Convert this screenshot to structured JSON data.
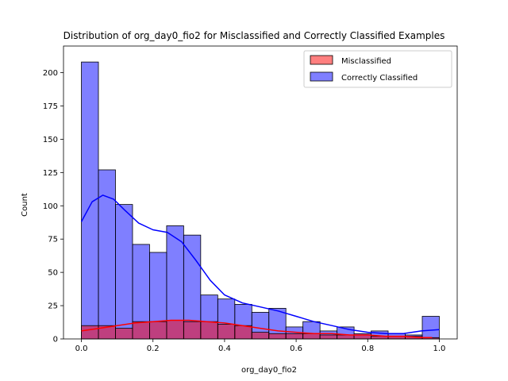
{
  "chart_data": {
    "type": "bar",
    "title": "Distribution of org_day0_fio2 for Misclassified and Correctly Classified Examples",
    "xlabel": "org_day0_fio2",
    "ylabel": "Count",
    "xlim": [
      -0.05,
      1.05
    ],
    "ylim": [
      0,
      220
    ],
    "xticks": [
      0.0,
      0.2,
      0.4,
      0.6,
      0.8,
      1.0
    ],
    "xtick_labels": [
      "0.0",
      "0.2",
      "0.4",
      "0.6",
      "0.8",
      "1.0"
    ],
    "yticks": [
      0,
      25,
      50,
      75,
      100,
      125,
      150,
      175,
      200
    ],
    "ytick_labels": [
      "0",
      "25",
      "50",
      "75",
      "100",
      "125",
      "150",
      "175",
      "200"
    ],
    "bin_edges": [
      0.0,
      0.0476,
      0.0952,
      0.1429,
      0.1905,
      0.2381,
      0.2857,
      0.3333,
      0.381,
      0.4286,
      0.4762,
      0.5238,
      0.5714,
      0.619,
      0.6667,
      0.7143,
      0.7619,
      0.8095,
      0.8571,
      0.9048,
      0.9524,
      1.0
    ],
    "series": [
      {
        "name": "Correctly Classified",
        "color": "#0000ff",
        "values": [
          208,
          127,
          101,
          71,
          65,
          85,
          78,
          33,
          30,
          26,
          20,
          23,
          9,
          13,
          6,
          9,
          4,
          6,
          4,
          3,
          17
        ],
        "kde_x": [
          0.0,
          0.03,
          0.06,
          0.09,
          0.12,
          0.16,
          0.2,
          0.24,
          0.28,
          0.32,
          0.36,
          0.4,
          0.45,
          0.5,
          0.55,
          0.6,
          0.65,
          0.7,
          0.75,
          0.8,
          0.85,
          0.9,
          0.95,
          1.0
        ],
        "kde_y": [
          88,
          103,
          108,
          105,
          97,
          87,
          82,
          80,
          73,
          59,
          44,
          33,
          27,
          24,
          21,
          17,
          13,
          10,
          7,
          5,
          4,
          4,
          6,
          7
        ]
      },
      {
        "name": "Misclassified",
        "color": "#ff0000",
        "values": [
          10,
          10,
          8,
          13,
          13,
          14,
          13,
          13,
          11,
          10,
          5,
          4,
          4,
          4,
          3,
          3,
          3,
          2,
          2,
          2,
          1
        ],
        "kde_x": [
          0.0,
          0.05,
          0.1,
          0.15,
          0.2,
          0.25,
          0.3,
          0.35,
          0.4,
          0.45,
          0.5,
          0.55,
          0.6,
          0.65,
          0.7,
          0.75,
          0.8,
          0.85,
          0.9,
          0.95,
          0.98
        ],
        "kde_y": [
          6,
          8,
          10,
          12,
          13,
          14,
          14,
          13,
          12,
          10,
          8,
          6,
          5,
          4,
          4,
          3,
          3,
          2,
          2,
          1,
          1
        ]
      }
    ],
    "legend_position": "top-right",
    "legend": [
      {
        "name": "Misclassified",
        "color": "#ff0000"
      },
      {
        "name": "Correctly Classified",
        "color": "#0000ff"
      }
    ],
    "grid": false
  }
}
